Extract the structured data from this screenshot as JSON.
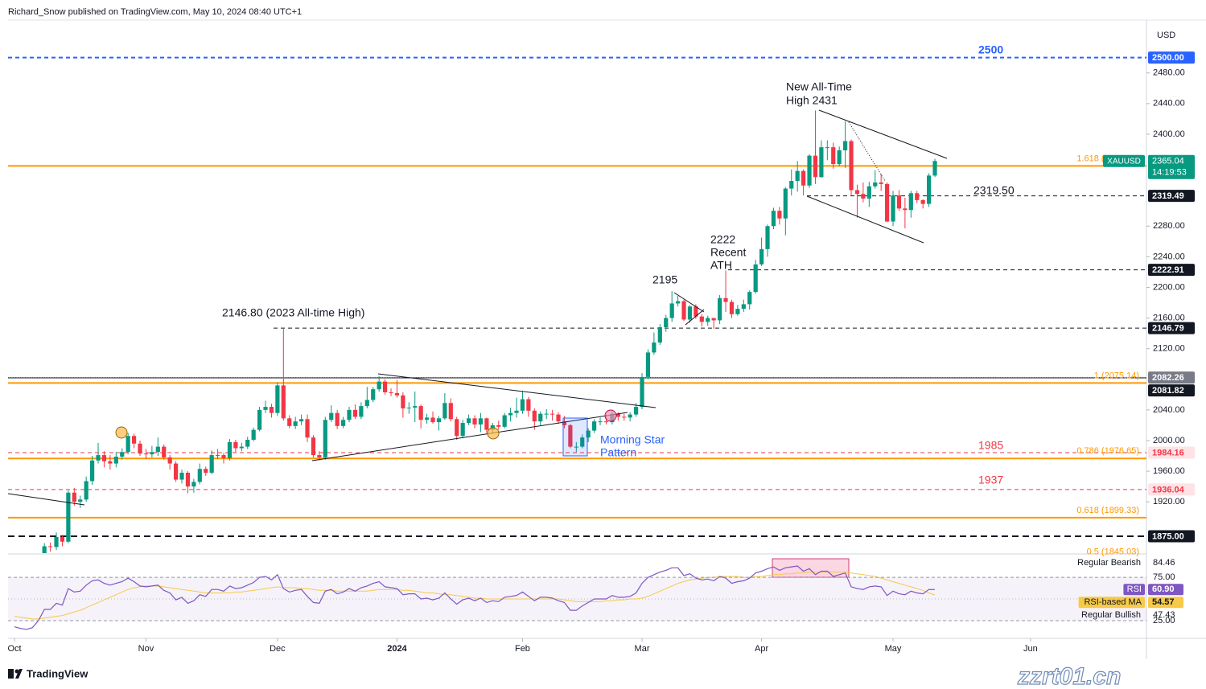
{
  "header": {
    "title": "Richard_Snow published on TradingView.com, May 10, 2024 08:40 UTC+1"
  },
  "footer": {
    "brand": "TradingView",
    "watermark": "zzrt01.cn"
  },
  "chart_data": [
    {
      "type": "candlestick",
      "symbol": "XAUUSD",
      "currency": "USD",
      "countdown": "14:19:53",
      "up_color": "#089981",
      "down_color": "#f23645",
      "xlim": [
        -1.08,
        189.4
      ],
      "xticks": [
        {
          "value": 0,
          "label": "Oct"
        },
        {
          "value": 22,
          "label": "Nov"
        },
        {
          "value": 44,
          "label": "Dec"
        },
        {
          "value": 64,
          "label": "2024"
        },
        {
          "value": 85,
          "label": "Feb"
        },
        {
          "value": 105,
          "label": "Mar"
        },
        {
          "value": 125,
          "label": "Apr"
        },
        {
          "value": 147,
          "label": "May"
        },
        {
          "value": 170,
          "label": "Jun"
        }
      ],
      "ylim": [
        1853,
        2549
      ],
      "yticks": [
        {
          "value": 2480,
          "label": "2480.00"
        },
        {
          "value": 2440,
          "label": "2440.00"
        },
        {
          "value": 2400,
          "label": "2400.00"
        },
        {
          "value": 2280,
          "label": "2280.00"
        },
        {
          "value": 2240,
          "label": "2240.00"
        },
        {
          "value": 2200,
          "label": "2200.00"
        },
        {
          "value": 2160,
          "label": "2160.00"
        },
        {
          "value": 2120,
          "label": "2120.00"
        },
        {
          "value": 2040,
          "label": "2040.00"
        },
        {
          "value": 2000,
          "label": "2000.00"
        },
        {
          "value": 1960,
          "label": "1960.00"
        },
        {
          "value": 1920,
          "label": "1920.00"
        }
      ],
      "open": [
        1848,
        1828,
        1822,
        1818,
        1820,
        1832,
        1862,
        1861,
        1874,
        1868,
        1932,
        1920,
        1923,
        1947,
        1974,
        1981,
        1973,
        1970,
        1979,
        1985,
        2006,
        1996,
        1983,
        1982,
        1985,
        1992,
        1978,
        1970,
        1949,
        1958,
        1940,
        1946,
        1963,
        1958,
        1981,
        1981,
        1977,
        1998,
        1990,
        1992,
        2001,
        2014,
        2040,
        2044,
        2036,
        2072,
        2029,
        2019,
        2025,
        2028,
        2004,
        1981,
        1978,
        2027,
        2036,
        2019,
        2027,
        2040,
        2031,
        2045,
        2053,
        2067,
        2077,
        2063,
        2062,
        2059,
        2042,
        2043,
        2045,
        2027,
        2030,
        2024,
        2029,
        2049,
        2028,
        2006,
        2023,
        2029,
        2021,
        2029,
        2014,
        2020,
        2018,
        2033,
        2036,
        2039,
        2054,
        2039,
        2025,
        2035,
        2035,
        2034,
        2025,
        2020,
        1992,
        1992,
        2004,
        2013,
        2025,
        2025,
        2024,
        2035,
        2031,
        2030,
        2034,
        2044,
        2083,
        2115,
        2128,
        2148,
        2160,
        2179,
        2182,
        2158,
        2175,
        2162,
        2155,
        2160,
        2157,
        2186,
        2181,
        2165,
        2172,
        2178,
        2194,
        2230,
        2250,
        2280,
        2300,
        2290,
        2329,
        2339,
        2352,
        2333,
        2372,
        2344,
        2383,
        2383,
        2361,
        2379,
        2391,
        2327,
        2322,
        2316,
        2332,
        2337,
        2335,
        2286,
        2320,
        2303,
        2301,
        2323,
        2314,
        2309,
        2346
      ],
      "high": [
        1852,
        1834,
        1828,
        1826,
        1837,
        1866,
        1867,
        1880,
        1877,
        1935,
        1938,
        1928,
        1953,
        1980,
        1997,
        1986,
        1981,
        1985,
        1990,
        2010,
        2009,
        2000,
        1989,
        1993,
        2004,
        1995,
        1981,
        1973,
        1962,
        1960,
        1950,
        1970,
        1966,
        1987,
        1989,
        1984,
        2002,
        2001,
        1997,
        2005,
        2017,
        2044,
        2052,
        2048,
        2076,
        2146.8,
        2033,
        2031,
        2034,
        2034,
        2007,
        1986,
        2031,
        2046,
        2040,
        2031,
        2044,
        2047,
        2050,
        2070,
        2070,
        2084,
        2080,
        2068,
        2079,
        2063,
        2050,
        2064,
        2047,
        2035,
        2038,
        2032,
        2062,
        2055,
        2031,
        2027,
        2034,
        2033,
        2036,
        2030,
        2023,
        2026,
        2036,
        2043,
        2056,
        2065,
        2057,
        2042,
        2038,
        2041,
        2040,
        2037,
        2032,
        2022,
        1998,
        2008,
        2016,
        2028,
        2030,
        2034,
        2038,
        2037,
        2035,
        2037,
        2049,
        2088,
        2119,
        2141,
        2152,
        2164,
        2195,
        2189,
        2184,
        2177,
        2178,
        2165,
        2163,
        2160,
        2190,
        2222,
        2184,
        2177,
        2184,
        2196,
        2236,
        2265,
        2282,
        2304,
        2305,
        2331,
        2354,
        2365,
        2354,
        2374,
        2431,
        2392,
        2392,
        2389,
        2384,
        2417,
        2393,
        2334,
        2337,
        2338,
        2353,
        2348,
        2337,
        2326,
        2327,
        2317,
        2326,
        2326,
        2315,
        2349,
        2368
      ],
      "low": [
        1823,
        1816,
        1813,
        1813,
        1810,
        1828,
        1855,
        1857,
        1862,
        1866,
        1915,
        1912,
        1920,
        1942,
        1970,
        1965,
        1962,
        1965,
        1975,
        1982,
        1990,
        1980,
        1976,
        1978,
        1980,
        1975,
        1962,
        1946,
        1944,
        1931,
        1932,
        1943,
        1954,
        1956,
        1976,
        1970,
        1974,
        1985,
        1986,
        1989,
        1999,
        2012,
        2036,
        2030,
        2032,
        2026,
        2016,
        2015,
        2020,
        1998,
        1978,
        1974,
        1975,
        2024,
        2015,
        2016,
        2024,
        2028,
        2028,
        2042,
        2050,
        2064,
        2060,
        2058,
        2056,
        2030,
        2035,
        2024,
        2016,
        2022,
        2022,
        2013,
        2027,
        2025,
        2001,
        2003,
        2020,
        2016,
        2011,
        2010,
        2009,
        2014,
        2016,
        2025,
        2030,
        2035,
        2031,
        2014,
        2020,
        2028,
        2026,
        2022,
        2016,
        1990,
        1985,
        1990,
        1998,
        2010,
        2020,
        2021,
        2021,
        2026,
        2026,
        2025,
        2031,
        2041,
        2080,
        2112,
        2125,
        2142,
        2155,
        2175,
        2156,
        2154,
        2159,
        2149,
        2150,
        2146,
        2152,
        2168,
        2160,
        2163,
        2168,
        2171,
        2192,
        2228,
        2240,
        2276,
        2282,
        2268,
        2320,
        2325,
        2320,
        2330,
        2335,
        2343,
        2366,
        2355,
        2358,
        2356,
        2320,
        2291,
        2311,
        2305,
        2329,
        2326,
        2285,
        2280,
        2300,
        2277,
        2291,
        2310,
        2303,
        2305,
        2344
      ],
      "close": [
        1828,
        1822,
        1818,
        1820,
        1832,
        1862,
        1861,
        1874,
        1868,
        1932,
        1920,
        1923,
        1947,
        1974,
        1981,
        1973,
        1970,
        1979,
        1985,
        2006,
        1996,
        1983,
        1982,
        1985,
        1992,
        1978,
        1970,
        1949,
        1958,
        1940,
        1946,
        1963,
        1958,
        1981,
        1981,
        1977,
        1998,
        1990,
        1992,
        2001,
        2014,
        2040,
        2044,
        2036,
        2072,
        2029,
        2019,
        2025,
        2028,
        2004,
        1981,
        1978,
        2027,
        2036,
        2019,
        2027,
        2040,
        2031,
        2045,
        2053,
        2067,
        2077,
        2063,
        2062,
        2059,
        2042,
        2043,
        2045,
        2027,
        2030,
        2024,
        2029,
        2049,
        2028,
        2006,
        2023,
        2029,
        2021,
        2029,
        2014,
        2020,
        2018,
        2033,
        2036,
        2039,
        2054,
        2039,
        2025,
        2035,
        2035,
        2034,
        2025,
        2020,
        1992,
        1992,
        2004,
        2013,
        2025,
        2025,
        2024,
        2035,
        2031,
        2030,
        2034,
        2044,
        2083,
        2115,
        2128,
        2148,
        2160,
        2179,
        2182,
        2158,
        2175,
        2162,
        2155,
        2160,
        2157,
        2186,
        2181,
        2165,
        2172,
        2178,
        2194,
        2230,
        2250,
        2280,
        2300,
        2290,
        2329,
        2339,
        2352,
        2333,
        2372,
        2344,
        2383,
        2383,
        2361,
        2379,
        2391,
        2327,
        2322,
        2316,
        2332,
        2337,
        2335,
        2286,
        2320,
        2303,
        2301,
        2323,
        2314,
        2309,
        2346,
        2365.04
      ],
      "levels": [
        {
          "value": 2500,
          "label": "2500.00",
          "color": "#2962ff",
          "style": "dashed"
        },
        {
          "value": 2319.49,
          "color": "#131722",
          "style": "dashed"
        },
        {
          "value": 2222.91,
          "color": "#131722",
          "style": "dashed"
        },
        {
          "value": 2146.79,
          "color": "#131722",
          "style": "dashed"
        },
        {
          "value": 2082.26,
          "color": "#787b86",
          "style": "dotted"
        },
        {
          "value": 2081.82,
          "color": "#131722",
          "style": "solid"
        },
        {
          "value": 1984.16,
          "color": "#f23645",
          "style": "dashed"
        },
        {
          "value": 1936.04,
          "color": "#f23645",
          "style": "dashed"
        },
        {
          "value": 1875,
          "label": "1875.00",
          "color": "#131722",
          "style": "bold-dashed"
        }
      ],
      "fib_color": "#ff9800",
      "fibs": [
        {
          "value": 2358.55,
          "label": "1.618 (2358.55)"
        },
        {
          "value": 2075.14,
          "label": "1 (2075.14)"
        },
        {
          "value": 1976.65,
          "label": "0.786 (1976.65)"
        },
        {
          "value": 1899.33,
          "label": "0.618 (1899.33)"
        },
        {
          "value": 1845.03,
          "label": "0.5 (1845.03)"
        }
      ],
      "annotations": [
        [
          "2500"
        ],
        [
          "New All-Time",
          "High 2431"
        ],
        [
          "2319.50"
        ],
        [
          "2222",
          "Recent",
          "ATH"
        ],
        [
          "2195"
        ],
        [
          "2146.80 (2023 All-time High)"
        ],
        [
          "Morning Star",
          "Pattern"
        ],
        [
          "1985"
        ],
        [
          "1937"
        ]
      ]
    },
    {
      "type": "line",
      "ylim": [
        6.5,
        101
      ],
      "yticks": [
        {
          "value": 75,
          "label": "75.00"
        },
        {
          "value": 25,
          "label": "25.00"
        }
      ],
      "series": [
        {
          "name": "RSI",
          "color": "#7e57c2",
          "last_label": "60.90",
          "values": [
            18,
            16,
            15,
            17,
            25,
            38,
            38,
            45,
            43,
            62,
            58,
            59,
            66,
            71,
            72,
            68,
            66,
            68,
            70,
            74,
            70,
            65,
            64,
            65,
            66,
            60,
            57,
            49,
            52,
            45,
            48,
            55,
            53,
            61,
            61,
            59,
            65,
            62,
            63,
            66,
            69,
            75,
            76,
            72,
            78,
            62,
            58,
            60,
            61,
            53,
            46,
            45,
            59,
            61,
            56,
            58,
            62,
            59,
            63,
            65,
            68,
            70,
            64,
            63,
            62,
            55,
            56,
            56,
            50,
            51,
            49,
            51,
            57,
            50,
            44,
            49,
            51,
            48,
            51,
            46,
            48,
            47,
            52,
            53,
            54,
            58,
            53,
            48,
            52,
            52,
            51,
            48,
            46,
            37,
            37,
            42,
            46,
            50,
            50,
            50,
            54,
            52,
            52,
            53,
            57,
            68,
            75,
            78,
            81,
            83,
            86,
            86,
            77,
            79,
            74,
            72,
            73,
            71,
            76,
            74,
            68,
            70,
            71,
            74,
            80,
            82,
            85,
            87,
            83,
            86,
            87,
            88,
            82,
            85,
            78,
            82,
            82,
            76,
            78,
            80,
            64,
            62,
            61,
            64,
            65,
            64,
            54,
            59,
            56,
            55,
            59,
            57,
            56,
            61,
            60.9
          ]
        },
        {
          "name": "RSI-based MA",
          "color": "#f7c948",
          "values": [
            30,
            29,
            28,
            27,
            27,
            28,
            29,
            30,
            31,
            33,
            35,
            37,
            40,
            43,
            46,
            49,
            52,
            55,
            58,
            61,
            63,
            64,
            65,
            65,
            65,
            64,
            63,
            62,
            61,
            60,
            59,
            58,
            57,
            57,
            57,
            57,
            57,
            58,
            58,
            59,
            60,
            61,
            62,
            63,
            64,
            63,
            63,
            63,
            62,
            62,
            61,
            60,
            60,
            60,
            59,
            59,
            59,
            59,
            59,
            59,
            60,
            61,
            61,
            61,
            61,
            60,
            60,
            59,
            58,
            57,
            57,
            56,
            55,
            55,
            54,
            53,
            52,
            51,
            51,
            50,
            50,
            50,
            50,
            50,
            50,
            50,
            50,
            50,
            50,
            50,
            50,
            50,
            49,
            48,
            47,
            47,
            47,
            47,
            47,
            48,
            48,
            49,
            49,
            50,
            50,
            51,
            53,
            56,
            59,
            62,
            65,
            68,
            70,
            72,
            73,
            74,
            75,
            75,
            76,
            76,
            76,
            76,
            75,
            75,
            76,
            76,
            77,
            78,
            78,
            79,
            79,
            80,
            80,
            81,
            81,
            81,
            81,
            81,
            81,
            81,
            80,
            79,
            78,
            77,
            76,
            74,
            72,
            70,
            68,
            66,
            64,
            62,
            60,
            57,
            54.57
          ]
        }
      ],
      "markers": [
        {
          "name": "Regular Bearish",
          "value": 84.46
        },
        {
          "name": "Regular Bullish",
          "value": 47.43
        }
      ]
    }
  ]
}
